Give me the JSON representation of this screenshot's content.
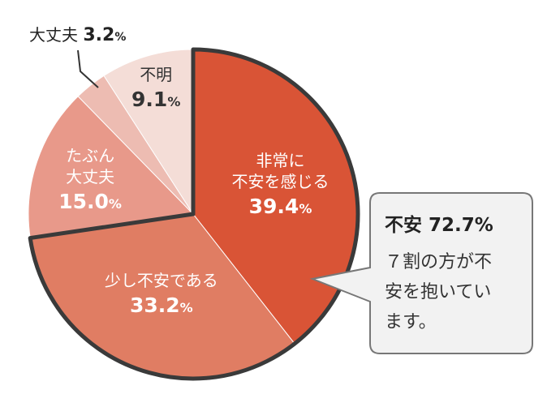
{
  "chart_data": {
    "type": "pie",
    "slices": [
      {
        "label_lines": [
          "非常に",
          "不安を感じる"
        ],
        "value": 39.4,
        "value_text": "39.4",
        "unit": "%",
        "color": "#d95436",
        "text_color": "#ffffff"
      },
      {
        "label_lines": [
          "少し不安である"
        ],
        "value": 33.2,
        "value_text": "33.2",
        "unit": "%",
        "color": "#e07d63",
        "text_color": "#ffffff"
      },
      {
        "label_lines": [
          "たぶん",
          "大丈夫"
        ],
        "value": 15.0,
        "value_text": "15.0",
        "unit": "%",
        "color": "#e8998a",
        "text_color": "#ffffff"
      },
      {
        "label_lines": [
          "大丈夫"
        ],
        "value": 3.2,
        "value_text": "3.2",
        "unit": "%",
        "color": "#edbcb2",
        "text_color": "#333333"
      },
      {
        "label_lines": [
          "不明"
        ],
        "value": 9.1,
        "value_text": "9.1",
        "unit": "%",
        "color": "#f4ddd7",
        "text_color": "#333333"
      }
    ],
    "highlight_group": [
      0,
      1
    ],
    "start_angle_deg": 0,
    "direction": "clockwise"
  },
  "callout": {
    "headline": "不安 72.7%",
    "body_lines": [
      "７割の方が不",
      "安を抱いてい",
      "ます。"
    ]
  },
  "colors": {
    "outline": "#3a3a3a",
    "callout_border": "#777777",
    "callout_fill": "#f2f2f2"
  }
}
